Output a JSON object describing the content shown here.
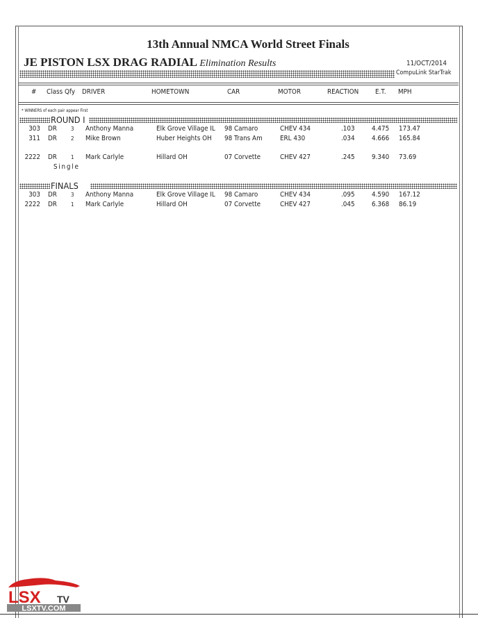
{
  "title": "13th Annual NMCA World Street Finals",
  "event": "JE PISTON LSX DRAG RADIAL",
  "subtitle": "Elimination Results",
  "date": "11/OCT/2014",
  "software": "CompuLink StarTrak",
  "columns": [
    "#",
    "Class",
    "Qfy",
    "DRIVER",
    "HOMETOWN",
    "CAR",
    "MOTOR",
    "REACTION",
    "E.T.",
    "MPH"
  ],
  "note": "* WINNERS of each pair appear First",
  "rounds": [
    {
      "label": "ROUND I",
      "rows": [
        {
          "num": "303",
          "class": "DR",
          "qfy": "3",
          "driver": "Anthony Manna",
          "hometown": "Elk Grove Village IL",
          "car": "98 Camaro",
          "motor": "CHEV  434",
          "reaction": ".103",
          "et": "4.475",
          "mph": "173.47"
        },
        {
          "num": "311",
          "class": "DR",
          "qfy": "2",
          "driver": "Mike Brown",
          "hometown": "Huber Heights OH",
          "car": "98 Trans Am",
          "motor": "ERL  430",
          "reaction": ".034",
          "et": "4.666",
          "mph": "165.84"
        },
        {
          "num": "2222",
          "class": "DR",
          "qfy": "1",
          "driver": "Mark Carlyle",
          "hometown": "Hillard OH",
          "car": "07 Corvette",
          "motor": "CHEV  427",
          "reaction": ".245",
          "et": "9.340",
          "mph": "73.69",
          "tag": "Single"
        }
      ]
    },
    {
      "label": "FINALS",
      "rows": [
        {
          "num": "303",
          "class": "DR",
          "qfy": "3",
          "driver": "Anthony Manna",
          "hometown": "Elk Grove Village IL",
          "car": "98 Camaro",
          "motor": "CHEV  434",
          "reaction": ".095",
          "et": "4.590",
          "mph": "167.12"
        },
        {
          "num": "2222",
          "class": "DR",
          "qfy": "1",
          "driver": "Mark Carlyle",
          "hometown": "Hillard OH",
          "car": "07 Corvette",
          "motor": "CHEV  427",
          "reaction": ".045",
          "et": "6.368",
          "mph": "86.19"
        }
      ]
    }
  ],
  "watermark": {
    "logo": "LSXTV",
    "url": "LSXTV.COM",
    "color": "#d42020"
  }
}
